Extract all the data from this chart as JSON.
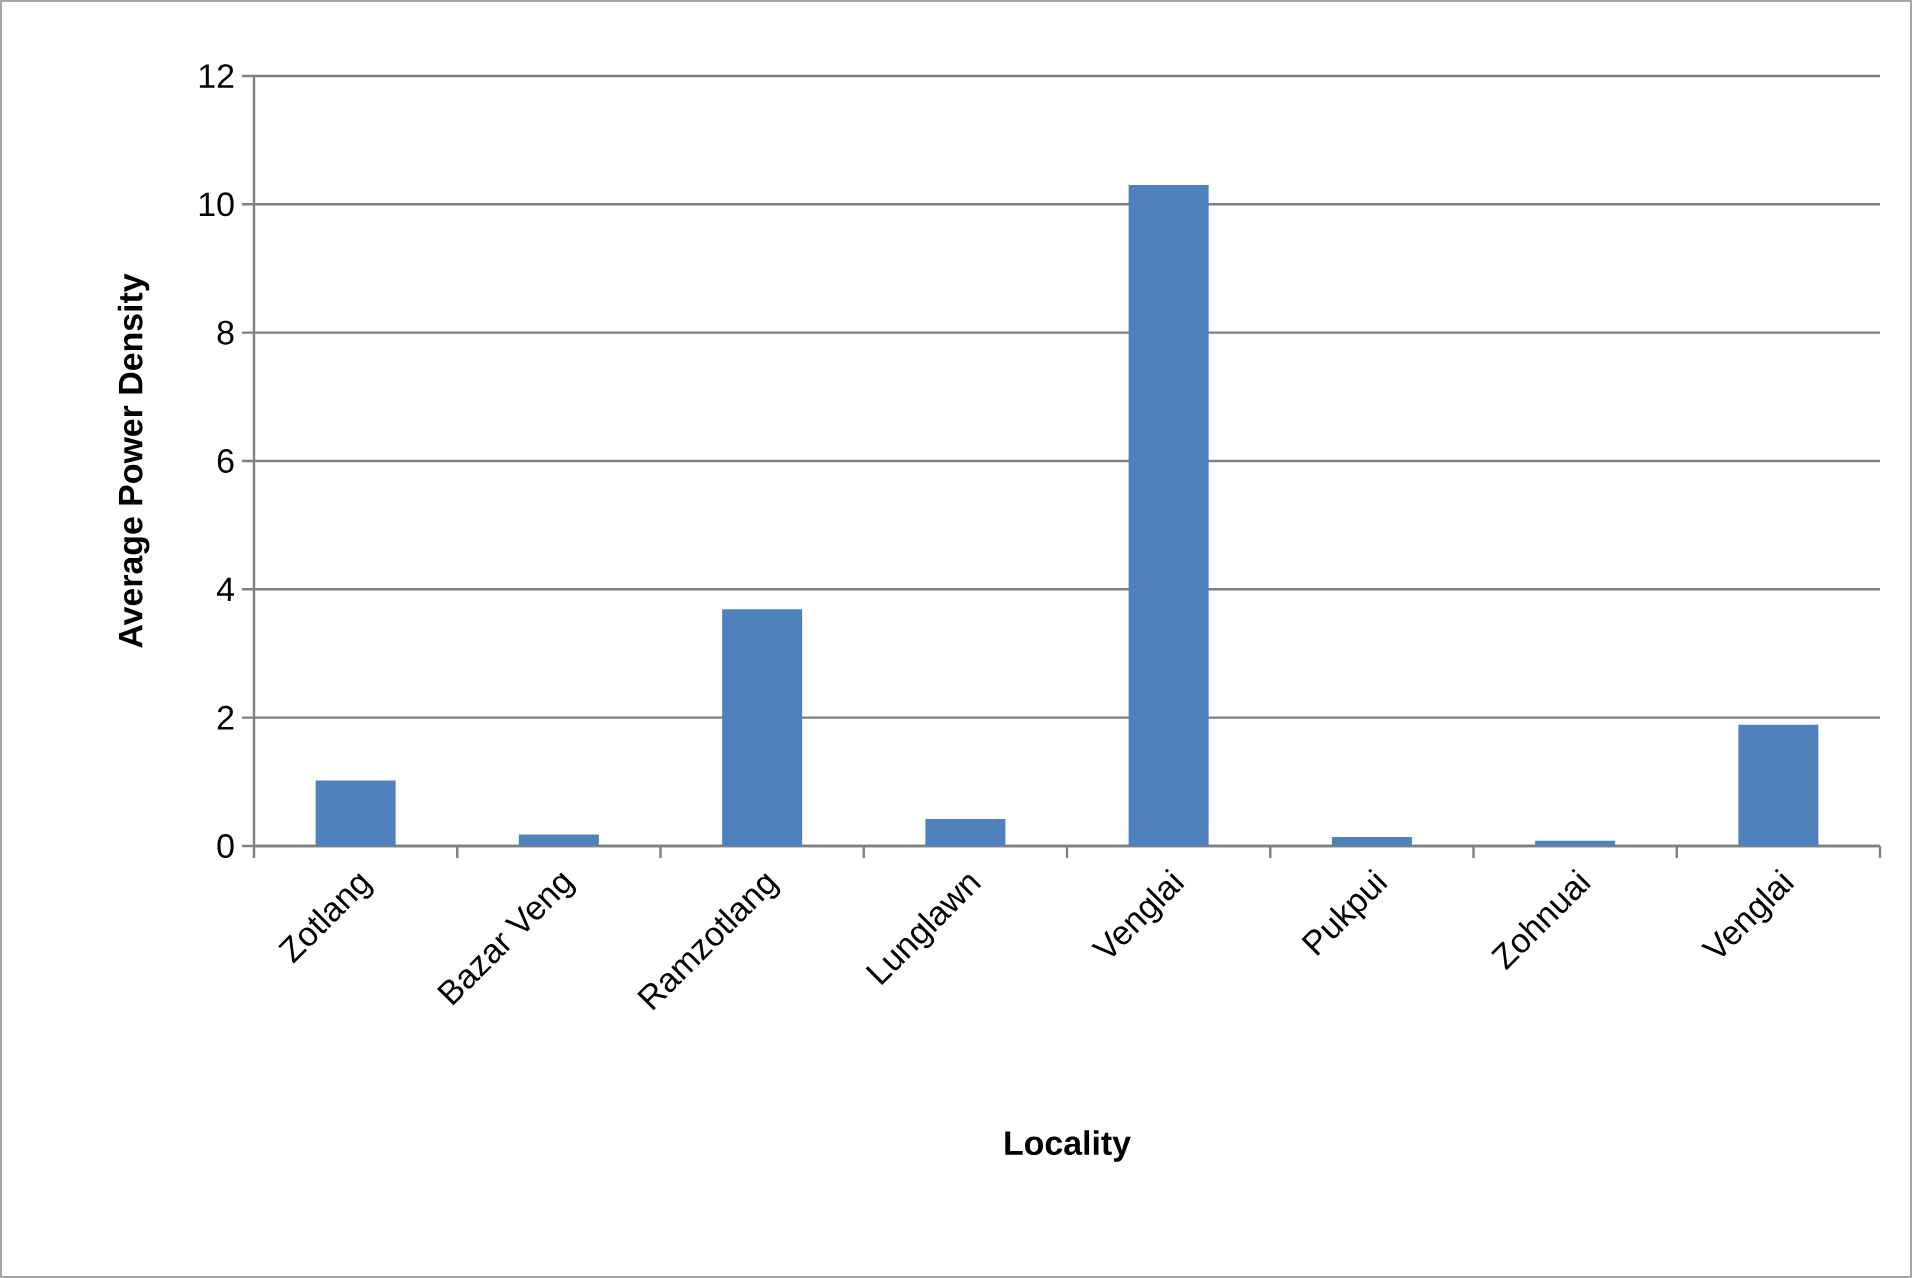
{
  "chart_data": {
    "type": "bar",
    "xlabel": "Locality",
    "ylabel": "Average Power Density",
    "categories": [
      "Zotlang",
      "Bazar Veng",
      "Ramzotlang",
      "Lunglawn",
      "Venglai",
      "Pukpui",
      "Zohnuai",
      "Venglai"
    ],
    "values": [
      1.02,
      0.18,
      3.69,
      0.42,
      10.3,
      0.14,
      0.08,
      1.89
    ],
    "color": "#4f81bd",
    "ylim": [
      0,
      12
    ],
    "yticks": [
      0,
      2,
      4,
      6,
      8,
      10,
      12
    ],
    "grid": "y"
  }
}
